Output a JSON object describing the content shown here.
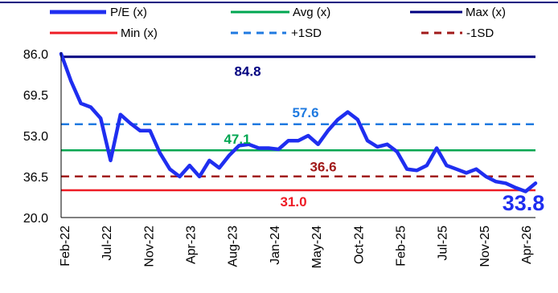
{
  "chart_data": {
    "type": "line",
    "title": "",
    "xlabel": "",
    "ylabel": "",
    "ylim": [
      20.0,
      86.0
    ],
    "yticks": [
      "86.0",
      "69.5",
      "53.0",
      "36.5",
      "20.0"
    ],
    "x_ticks": [
      "Feb-22",
      "Jul-22",
      "Nov-22",
      "Apr-23",
      "Aug-23",
      "Jan-24",
      "May-24",
      "Oct-24",
      "Feb-25",
      "Jul-25",
      "Nov-25",
      "Apr-26"
    ],
    "grid": false,
    "legend_position": "top",
    "series": [
      {
        "name": "P/E (x)",
        "color": "#1f2ef0",
        "style": "solid-thick",
        "values": [
          86.0,
          75.0,
          66.0,
          64.5,
          60.0,
          43.0,
          61.5,
          58.0,
          55.0,
          55.0,
          46.0,
          39.5,
          36.5,
          41.0,
          36.5,
          43.0,
          40.0,
          45.0,
          49.0,
          49.5,
          48.0,
          48.0,
          47.5,
          51.0,
          51.0,
          53.0,
          49.5,
          55.0,
          59.5,
          62.5,
          59.5,
          51.0,
          48.5,
          49.5,
          46.5,
          39.5,
          39.0,
          41.0,
          48.0,
          41.0,
          39.5,
          38.0,
          39.5,
          36.5,
          34.5,
          33.8,
          32.0,
          30.5,
          33.8
        ]
      },
      {
        "name": "Avg (x)",
        "color": "#00a651",
        "style": "solid",
        "value": 47.1
      },
      {
        "name": "Max (x)",
        "color": "#000080",
        "style": "solid",
        "value": 84.8
      },
      {
        "name": "Min (x)",
        "color": "#ee1c25",
        "style": "solid",
        "value": 31.0
      },
      {
        "name": "+1SD",
        "color": "#1f7ae0",
        "style": "dashed",
        "value": 57.6
      },
      {
        "name": "-1SD",
        "color": "#a11a1a",
        "style": "dashed",
        "value": 36.6
      }
    ],
    "annotations": [
      {
        "text": "84.8",
        "color": "#000080"
      },
      {
        "text": "57.6",
        "color": "#1f7ae0"
      },
      {
        "text": "47.1",
        "color": "#00a651"
      },
      {
        "text": "36.6",
        "color": "#a11a1a"
      },
      {
        "text": "31.0",
        "color": "#ee1c25"
      },
      {
        "text": "33.8",
        "color": "#1f2ef0"
      }
    ]
  }
}
